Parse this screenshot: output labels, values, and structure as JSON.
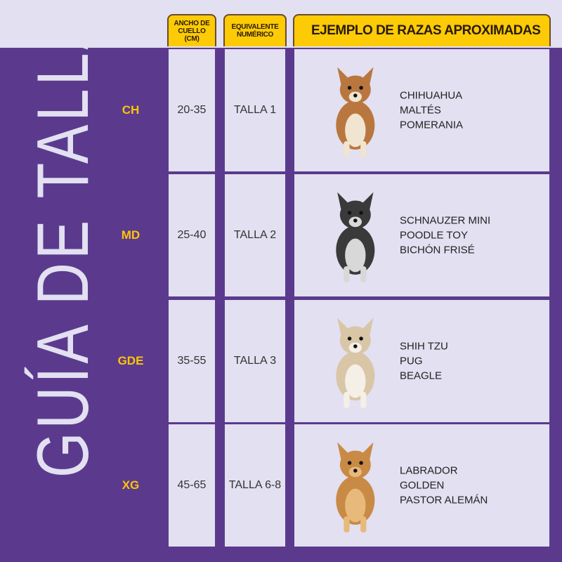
{
  "title": "GUÍA DE TALLAS",
  "headers": {
    "neck": "ANCHO DE CUELLO (CM)",
    "numeric": "EQUIVALENTE NUMÉRICO",
    "breeds": "EJEMPLO DE RAZAS APROXIMADAS"
  },
  "colors": {
    "purple": "#5b3a8e",
    "lavender": "#e2e0f1",
    "yellow": "#fccb06"
  },
  "rows": [
    {
      "size": "CH",
      "neck": "20-35",
      "numeric": "TALLA 1",
      "breeds": [
        "CHIHUAHUA",
        "MALTÉS",
        "POMERANIA"
      ],
      "dog": "chihuahua-photo"
    },
    {
      "size": "MD",
      "neck": "25-40",
      "numeric": "TALLA 2",
      "breeds": [
        "SCHNAUZER MINI",
        "POODLE TOY",
        "BICHÓN FRISÉ"
      ],
      "dog": "schnauzer-photo"
    },
    {
      "size": "GDE",
      "neck": "35-55",
      "numeric": "TALLA 3",
      "breeds": [
        "SHIH TZU",
        "PUG",
        "BEAGLE"
      ],
      "dog": "shih-tzu-photo"
    },
    {
      "size": "XG",
      "neck": "45-65",
      "numeric": "TALLA 6-8",
      "breeds": [
        "LABRADOR",
        "GOLDEN",
        "PASTOR ALEMÁN"
      ],
      "dog": "golden-retriever-photo"
    }
  ]
}
